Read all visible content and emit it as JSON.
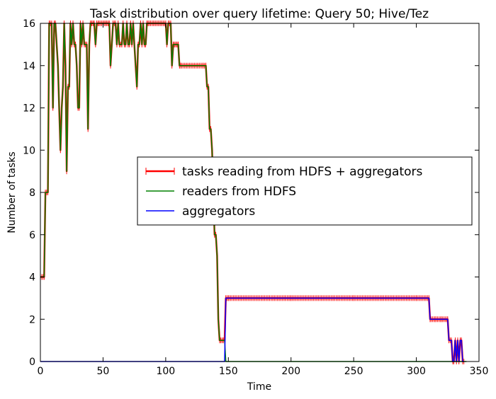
{
  "chart_data": {
    "type": "line",
    "title": "Task distribution over query lifetime: Query 50; Hive/Tez",
    "xlabel": "Time",
    "ylabel": "Number of tasks",
    "xlim": [
      0,
      350
    ],
    "ylim": [
      0,
      16
    ],
    "xticks": [
      0,
      50,
      100,
      150,
      200,
      250,
      300,
      350
    ],
    "yticks": [
      0,
      2,
      4,
      6,
      8,
      10,
      12,
      14,
      16
    ],
    "grid": false,
    "legend_position": "center-right",
    "series": [
      {
        "name": "tasks reading from HDFS + aggregators",
        "color": "#ff0000",
        "marker": "plus",
        "points": [
          [
            0,
            4
          ],
          [
            3,
            4
          ],
          [
            4,
            8
          ],
          [
            6,
            8
          ],
          [
            7,
            16
          ],
          [
            9,
            16
          ],
          [
            10,
            12
          ],
          [
            11,
            16
          ],
          [
            12,
            16
          ],
          [
            13,
            15
          ],
          [
            14,
            14
          ],
          [
            15,
            12
          ],
          [
            16,
            10
          ],
          [
            17,
            12
          ],
          [
            18,
            13
          ],
          [
            19,
            16
          ],
          [
            20,
            14
          ],
          [
            21,
            9
          ],
          [
            22,
            13
          ],
          [
            23,
            13
          ],
          [
            24,
            16
          ],
          [
            25,
            15
          ],
          [
            26,
            16
          ],
          [
            27,
            15
          ],
          [
            28,
            15
          ],
          [
            29,
            14
          ],
          [
            30,
            12
          ],
          [
            31,
            12
          ],
          [
            32,
            16
          ],
          [
            33,
            15
          ],
          [
            34,
            16
          ],
          [
            35,
            15
          ],
          [
            36,
            15
          ],
          [
            37,
            15
          ],
          [
            38,
            11
          ],
          [
            39,
            15
          ],
          [
            40,
            16
          ],
          [
            41,
            16
          ],
          [
            42,
            16
          ],
          [
            43,
            16
          ],
          [
            44,
            15
          ],
          [
            45,
            16
          ],
          [
            46,
            16
          ],
          [
            50,
            16
          ],
          [
            52,
            16
          ],
          [
            54,
            16
          ],
          [
            55,
            16
          ],
          [
            56,
            14
          ],
          [
            57,
            15
          ],
          [
            58,
            16
          ],
          [
            60,
            16
          ],
          [
            61,
            15
          ],
          [
            62,
            16
          ],
          [
            63,
            15
          ],
          [
            65,
            15
          ],
          [
            66,
            16
          ],
          [
            67,
            15
          ],
          [
            68,
            15
          ],
          [
            69,
            16
          ],
          [
            70,
            15
          ],
          [
            71,
            15
          ],
          [
            72,
            16
          ],
          [
            73,
            15
          ],
          [
            74,
            16
          ],
          [
            75,
            15
          ],
          [
            76,
            14
          ],
          [
            77,
            13
          ],
          [
            78,
            15
          ],
          [
            79,
            15
          ],
          [
            80,
            16
          ],
          [
            81,
            15
          ],
          [
            82,
            16
          ],
          [
            83,
            15
          ],
          [
            84,
            15
          ],
          [
            85,
            16
          ],
          [
            86,
            16
          ],
          [
            100,
            16
          ],
          [
            101,
            15
          ],
          [
            102,
            16
          ],
          [
            104,
            16
          ],
          [
            105,
            14
          ],
          [
            106,
            15
          ],
          [
            107,
            15
          ],
          [
            108,
            15
          ],
          [
            109,
            15
          ],
          [
            110,
            15
          ],
          [
            111,
            14
          ],
          [
            112,
            14
          ],
          [
            130,
            14
          ],
          [
            132,
            14
          ],
          [
            133,
            13
          ],
          [
            134,
            13
          ],
          [
            135,
            11
          ],
          [
            136,
            11
          ],
          [
            137,
            10
          ],
          [
            138,
            8
          ],
          [
            139,
            6
          ],
          [
            140,
            6
          ],
          [
            141,
            5
          ],
          [
            142,
            2
          ],
          [
            143,
            1
          ],
          [
            144,
            1
          ],
          [
            146,
            1
          ],
          [
            147,
            1
          ],
          [
            148,
            3
          ],
          [
            150,
            3
          ],
          [
            200,
            3
          ],
          [
            250,
            3
          ],
          [
            300,
            3
          ],
          [
            310,
            3
          ],
          [
            311,
            2
          ],
          [
            315,
            2
          ],
          [
            320,
            2
          ],
          [
            325,
            2
          ],
          [
            326,
            1
          ],
          [
            328,
            1
          ],
          [
            329,
            0
          ],
          [
            330,
            0
          ],
          [
            331,
            1
          ],
          [
            332,
            0
          ],
          [
            333,
            1
          ],
          [
            334,
            0
          ],
          [
            335,
            1
          ],
          [
            336,
            1
          ],
          [
            337,
            0
          ],
          [
            338,
            0
          ]
        ]
      },
      {
        "name": "readers from HDFS",
        "color": "#008000",
        "marker": "none",
        "points": [
          [
            0,
            4
          ],
          [
            3,
            4
          ],
          [
            4,
            8
          ],
          [
            6,
            8
          ],
          [
            7,
            16
          ],
          [
            9,
            16
          ],
          [
            10,
            12
          ],
          [
            11,
            16
          ],
          [
            12,
            16
          ],
          [
            13,
            15
          ],
          [
            14,
            14
          ],
          [
            15,
            12
          ],
          [
            16,
            10
          ],
          [
            17,
            12
          ],
          [
            18,
            13
          ],
          [
            19,
            16
          ],
          [
            20,
            14
          ],
          [
            21,
            9
          ],
          [
            22,
            13
          ],
          [
            23,
            13
          ],
          [
            24,
            16
          ],
          [
            25,
            15
          ],
          [
            26,
            16
          ],
          [
            27,
            15
          ],
          [
            28,
            15
          ],
          [
            29,
            14
          ],
          [
            30,
            12
          ],
          [
            31,
            12
          ],
          [
            32,
            16
          ],
          [
            33,
            15
          ],
          [
            34,
            16
          ],
          [
            35,
            15
          ],
          [
            36,
            15
          ],
          [
            37,
            15
          ],
          [
            38,
            11
          ],
          [
            39,
            15
          ],
          [
            40,
            16
          ],
          [
            41,
            16
          ],
          [
            42,
            16
          ],
          [
            43,
            16
          ],
          [
            44,
            15
          ],
          [
            45,
            16
          ],
          [
            46,
            16
          ],
          [
            50,
            16
          ],
          [
            52,
            16
          ],
          [
            54,
            16
          ],
          [
            55,
            16
          ],
          [
            56,
            14
          ],
          [
            57,
            15
          ],
          [
            58,
            16
          ],
          [
            60,
            16
          ],
          [
            61,
            15
          ],
          [
            62,
            16
          ],
          [
            63,
            15
          ],
          [
            65,
            15
          ],
          [
            66,
            16
          ],
          [
            67,
            15
          ],
          [
            68,
            15
          ],
          [
            69,
            16
          ],
          [
            70,
            15
          ],
          [
            71,
            15
          ],
          [
            72,
            16
          ],
          [
            73,
            15
          ],
          [
            74,
            16
          ],
          [
            75,
            15
          ],
          [
            76,
            14
          ],
          [
            77,
            13
          ],
          [
            78,
            15
          ],
          [
            79,
            15
          ],
          [
            80,
            16
          ],
          [
            81,
            15
          ],
          [
            82,
            16
          ],
          [
            83,
            15
          ],
          [
            84,
            15
          ],
          [
            85,
            16
          ],
          [
            86,
            16
          ],
          [
            100,
            16
          ],
          [
            101,
            15
          ],
          [
            102,
            16
          ],
          [
            104,
            16
          ],
          [
            105,
            14
          ],
          [
            106,
            15
          ],
          [
            107,
            15
          ],
          [
            108,
            15
          ],
          [
            109,
            15
          ],
          [
            110,
            15
          ],
          [
            111,
            14
          ],
          [
            112,
            14
          ],
          [
            130,
            14
          ],
          [
            132,
            14
          ],
          [
            133,
            13
          ],
          [
            134,
            13
          ],
          [
            135,
            11
          ],
          [
            136,
            11
          ],
          [
            137,
            10
          ],
          [
            138,
            8
          ],
          [
            139,
            6
          ],
          [
            140,
            6
          ],
          [
            141,
            5
          ],
          [
            142,
            2
          ],
          [
            143,
            1
          ],
          [
            144,
            1
          ],
          [
            146,
            1
          ],
          [
            147,
            1
          ],
          [
            148,
            0
          ],
          [
            150,
            0
          ],
          [
            200,
            0
          ],
          [
            250,
            0
          ],
          [
            300,
            0
          ],
          [
            340,
            0
          ]
        ]
      },
      {
        "name": "aggregators",
        "color": "#0000ff",
        "marker": "none",
        "points": [
          [
            0,
            0
          ],
          [
            50,
            0
          ],
          [
            100,
            0
          ],
          [
            146,
            0
          ],
          [
            147,
            0
          ],
          [
            148,
            3
          ],
          [
            150,
            3
          ],
          [
            200,
            3
          ],
          [
            250,
            3
          ],
          [
            300,
            3
          ],
          [
            310,
            3
          ],
          [
            311,
            2
          ],
          [
            315,
            2
          ],
          [
            320,
            2
          ],
          [
            325,
            2
          ],
          [
            326,
            1
          ],
          [
            328,
            1
          ],
          [
            329,
            0
          ],
          [
            330,
            0
          ],
          [
            331,
            1
          ],
          [
            332,
            0
          ],
          [
            333,
            1
          ],
          [
            334,
            0
          ],
          [
            335,
            1
          ],
          [
            336,
            1
          ],
          [
            337,
            0
          ],
          [
            338,
            0
          ]
        ]
      }
    ]
  }
}
